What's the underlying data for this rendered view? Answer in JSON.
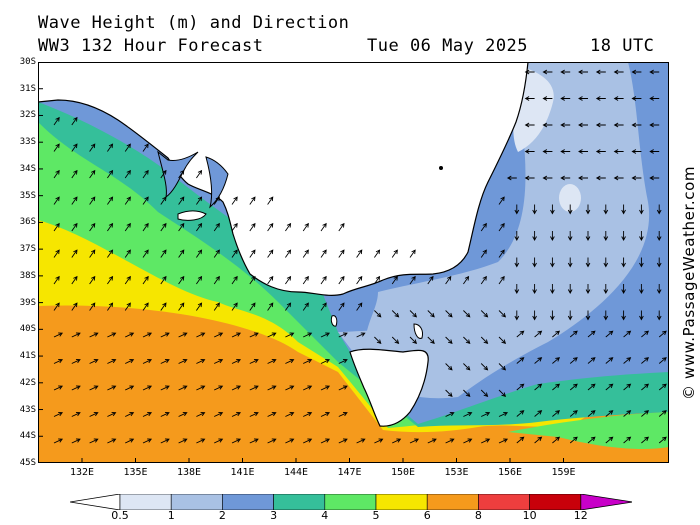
{
  "header": {
    "line1": "Wave Height (m) and Direction",
    "model": "WW3 132 Hour Forecast",
    "date": "Tue 06 May 2025",
    "time": "18 UTC"
  },
  "credit": "© www.PassageWeather.com",
  "axes": {
    "lat_labels": [
      "30S",
      "31S",
      "32S",
      "33S",
      "34S",
      "35S",
      "36S",
      "37S",
      "38S",
      "39S",
      "40S",
      "41S",
      "42S",
      "43S",
      "44S",
      "45S"
    ],
    "lon_labels": [
      "132E",
      "135E",
      "138E",
      "141E",
      "144E",
      "147E",
      "150E",
      "153E",
      "156E",
      "159E"
    ]
  },
  "legend": {
    "values": [
      "0.5",
      "1",
      "2",
      "3",
      "4",
      "5",
      "6",
      "8",
      "10",
      "12"
    ],
    "colors": [
      "#dde6f4",
      "#a9c1e4",
      "#6f98d8",
      "#35bf9a",
      "#5ee865",
      "#f6e600",
      "#f59a1c",
      "#ee3e3e",
      "#c8000a",
      "#c800c8"
    ]
  },
  "map_colors": {
    "land": "#ffffff",
    "coast": "#000000",
    "arrow": "#000000"
  }
}
